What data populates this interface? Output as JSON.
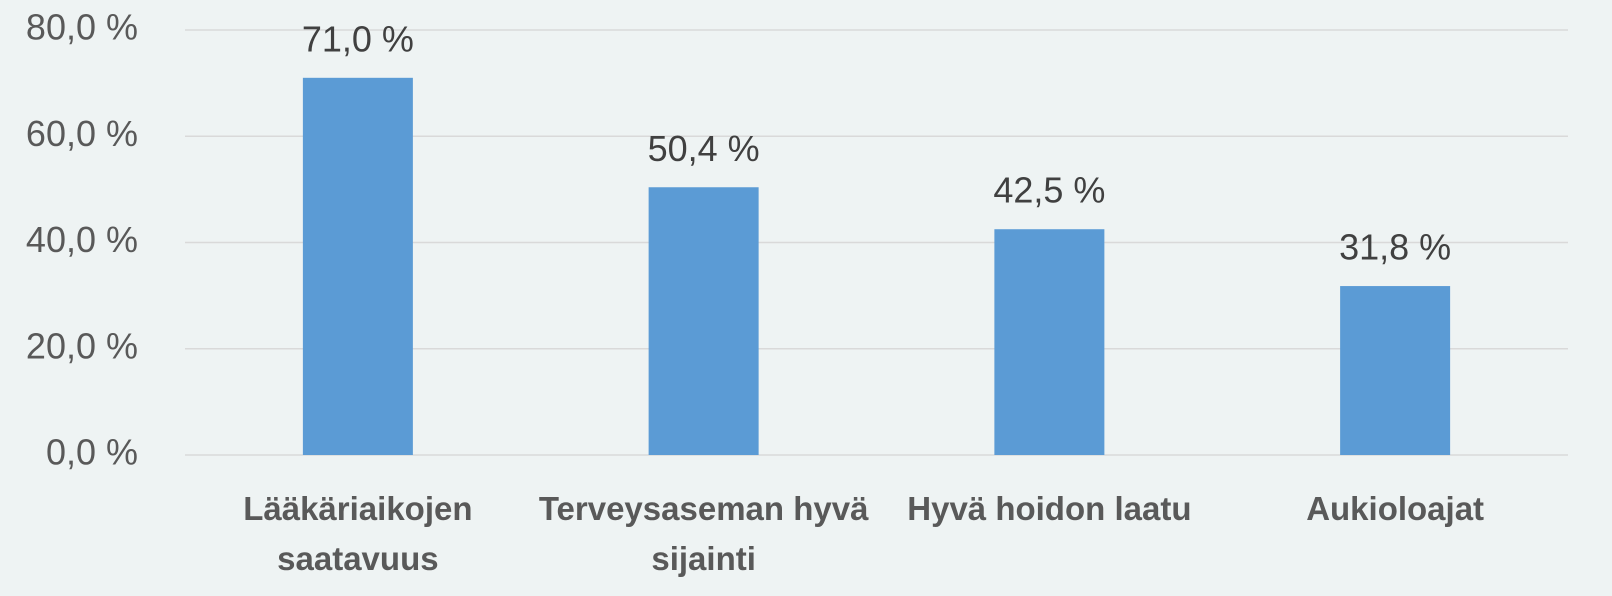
{
  "chart_data": {
    "type": "bar",
    "categories": [
      "Lääkäriaikojen saatavuus",
      "Terveysaseman hyvä sijainti",
      "Hyvä hoidon laatu",
      "Aukioloajat"
    ],
    "values": [
      71.0,
      50.4,
      42.5,
      31.8
    ],
    "value_labels": [
      "71,0 %",
      "50,4 %",
      "42,5 %",
      "31,8 %"
    ],
    "color": "#5b9bd5",
    "ylim": [
      0,
      80
    ],
    "yticks": [
      {
        "value": 0,
        "label": "0,0 %"
      },
      {
        "value": 20,
        "label": "20,0 %"
      },
      {
        "value": 40,
        "label": "40,0 %"
      },
      {
        "value": 60,
        "label": "60,0 %"
      },
      {
        "value": 80,
        "label": "80,0 %"
      }
    ],
    "grid": true
  }
}
